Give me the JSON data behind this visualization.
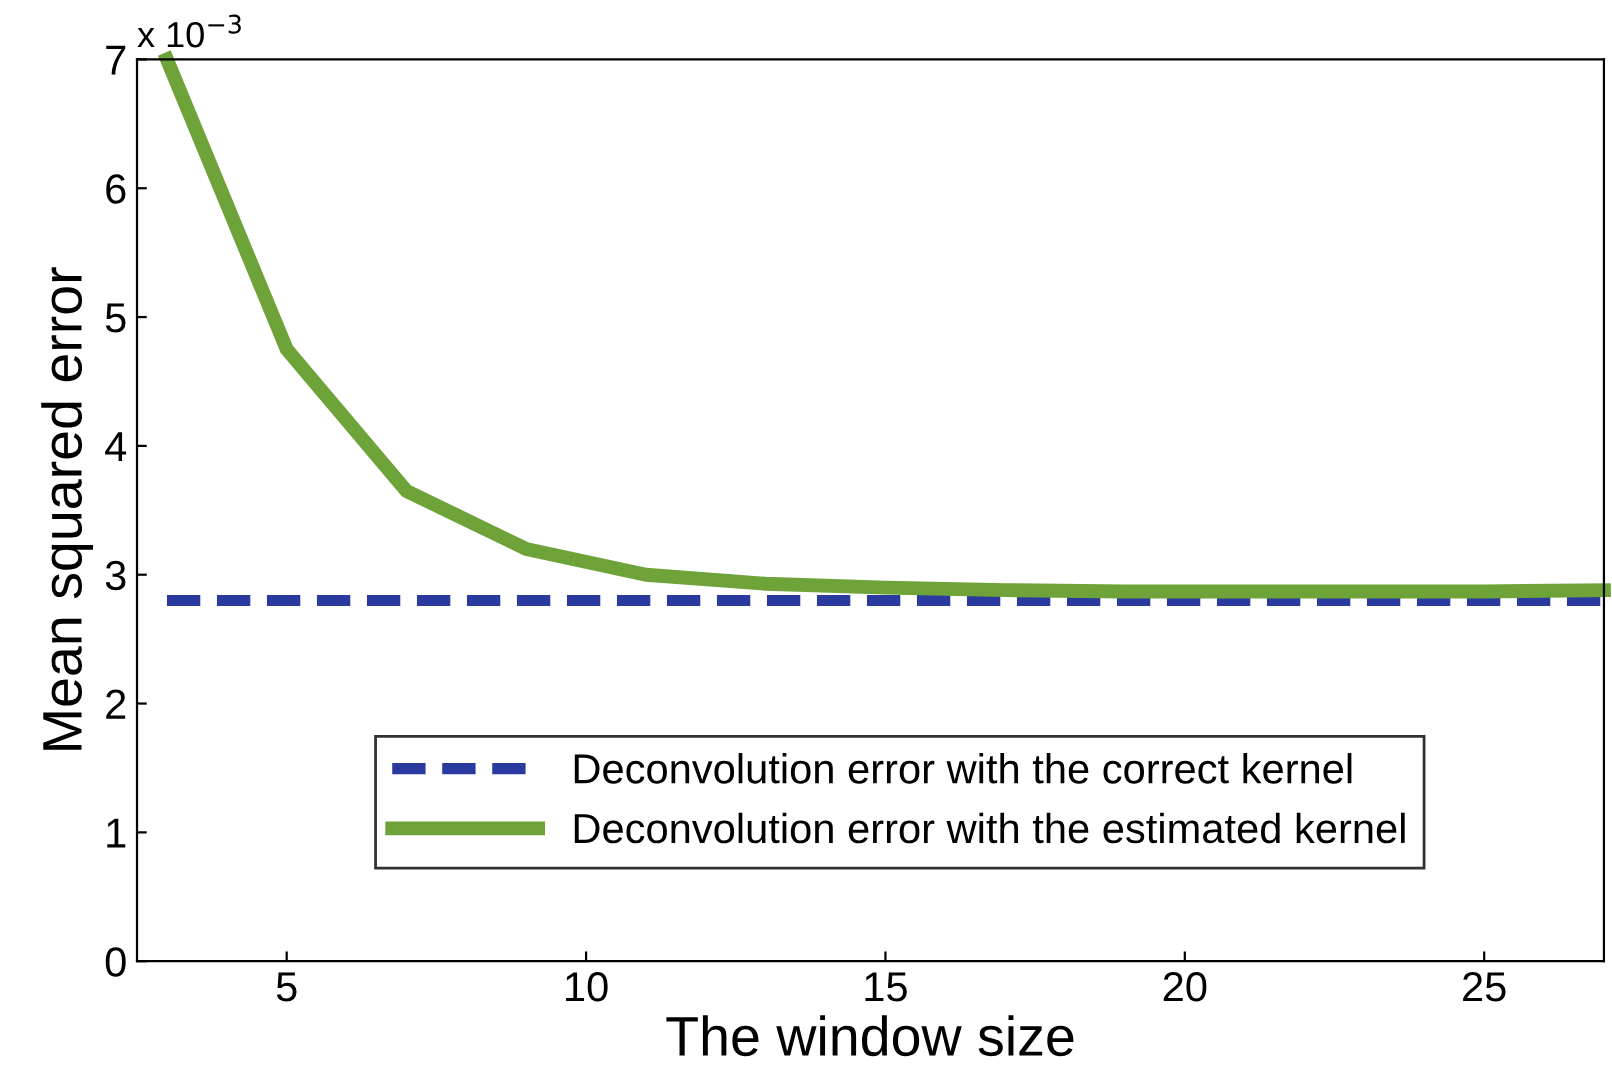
{
  "chart_data": {
    "type": "line",
    "xlabel": "The window size",
    "ylabel": "Mean squared error",
    "annotations": [
      "x 10$^{−3}$"
    ],
    "x": [
      3,
      5,
      7,
      9,
      11,
      13,
      15,
      17,
      19,
      21,
      23,
      25,
      27
    ],
    "series": [
      {
        "name": "Deconvolution error with the correct kernel",
        "color": "#2b3a9e",
        "line_style": "dashed",
        "values": [
          2.8,
          2.8,
          2.8,
          2.8,
          2.8,
          2.8,
          2.8,
          2.8,
          2.8,
          2.8,
          2.8,
          2.8,
          2.8
        ]
      },
      {
        "name": "Deconvolution error with the estimated kernel",
        "color": "#6ea33a",
        "line_style": "solid",
        "values": [
          7.0,
          4.75,
          3.65,
          3.2,
          3.0,
          2.93,
          2.9,
          2.88,
          2.87,
          2.87,
          2.87,
          2.87,
          2.88
        ]
      }
    ],
    "xlim": [
      2.5,
      27
    ],
    "ylim": [
      0,
      7
    ],
    "xticks": [
      5,
      10,
      15,
      20,
      25
    ],
    "yticks": [
      0,
      1,
      2,
      3,
      4,
      5,
      6,
      7
    ],
    "legend": "bottom",
    "grid": false
  }
}
